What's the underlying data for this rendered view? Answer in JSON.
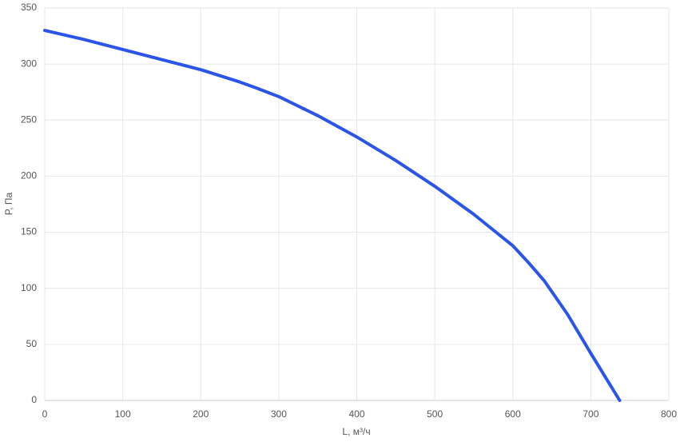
{
  "chart_data": {
    "type": "line",
    "x_label": "L, м³/ч",
    "y_label": "P, Па",
    "x": [
      0,
      50,
      100,
      150,
      200,
      250,
      270,
      300,
      350,
      400,
      450,
      500,
      550,
      600,
      620,
      640,
      670,
      700,
      737
    ],
    "series": [
      {
        "name": "P",
        "color": "#2b55e8",
        "values": [
          330,
          322,
          313,
          304,
          295,
          284,
          279,
          271,
          254,
          235,
          214,
          191,
          166,
          138,
          123,
          107,
          77,
          42,
          0
        ]
      }
    ],
    "xlim": [
      0,
      800
    ],
    "xticks": [
      0,
      100,
      200,
      300,
      400,
      500,
      600,
      700,
      800
    ],
    "ylim": [
      0,
      350
    ],
    "yticks": [
      0,
      50,
      100,
      150,
      200,
      250,
      300,
      350
    ],
    "grid": true
  }
}
